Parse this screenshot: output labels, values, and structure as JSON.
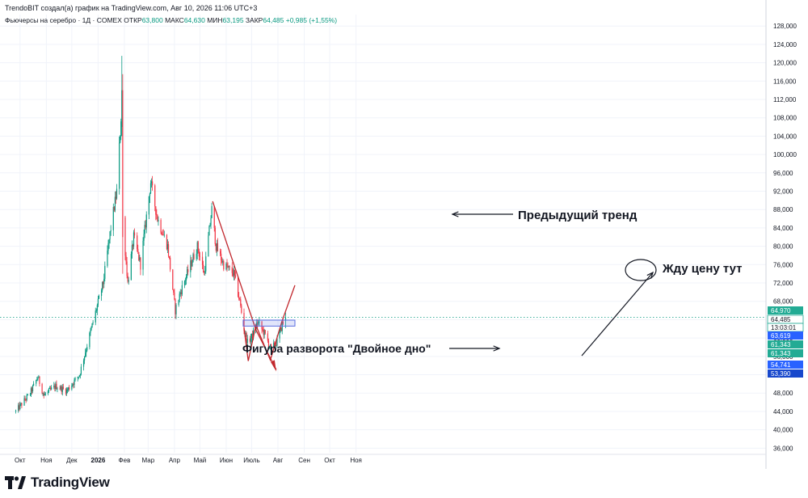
{
  "header": {
    "caption": "TrendoBIT создал(а) график на TradingView.com, Авг 10, 2026 11:06 UTC+3",
    "symbol": "Фьючерсы на серебро · 1Д · COMEX",
    "open_label": "ОТКР",
    "open_value": "63,800",
    "high_label": "МАКС",
    "high_value": "64,630",
    "low_label": "МИН",
    "low_value": "63,195",
    "close_label": "ЗАКР",
    "close_value": "64,485",
    "change": "+0,985 (+1,55%)"
  },
  "colors": {
    "up": "#089981",
    "down": "#f23645",
    "trend_line": "#c1272d",
    "arrow": "#131722",
    "range_box": "#5b6ee1",
    "badge_green": "#22ab94",
    "badge_blue": "#2962ff",
    "badge_darkblue": "#1848cc",
    "dotted": "#089981"
  },
  "chart_data": {
    "type": "candlestick",
    "title": "Фьючерсы на серебро · 1Д · COMEX",
    "y_ticks": [
      "36,000",
      "40,000",
      "44,000",
      "48,000",
      "52,000",
      "56,000",
      "60,000",
      "64,000",
      "68,000",
      "72,000",
      "76,000",
      "80,000",
      "84,000",
      "88,000",
      "92,000",
      "96,000",
      "100,000",
      "104,000",
      "108,000",
      "112,000",
      "116,000",
      "120,000",
      "124,000",
      "128,000"
    ],
    "ylim": [
      35000,
      130500
    ],
    "x_ticks": [
      "Окт",
      "Ноя",
      "Дек",
      "2026",
      "Фев",
      "Мар",
      "Апр",
      "Май",
      "Июн",
      "Июль",
      "Авг",
      "Сен",
      "Окт",
      "Ноя"
    ],
    "current_price": 64485,
    "price_labels": [
      {
        "text": "64,970",
        "color": "green"
      },
      {
        "text": "64,485",
        "color": "white"
      },
      {
        "text": "13:03:01",
        "color": "white"
      },
      {
        "text": "63,619",
        "color": "blue"
      },
      {
        "text": "61,343",
        "color": "green"
      },
      {
        "text": "61,343",
        "color": "green"
      },
      {
        "text": "54,741",
        "color": "blue"
      },
      {
        "text": "53,390",
        "color": "darkblue"
      }
    ],
    "keypoints": [
      [
        "2025-09-26",
        44000
      ],
      [
        "2025-10-13",
        48000
      ],
      [
        "2025-10-22",
        51500
      ],
      [
        "2025-10-29",
        47500
      ],
      [
        "2025-11-12",
        49500
      ],
      [
        "2025-11-25",
        48500
      ],
      [
        "2025-12-10",
        52000
      ],
      [
        "2025-12-24",
        62000
      ],
      [
        "2026-01-07",
        72000
      ],
      [
        "2026-01-16",
        84000
      ],
      [
        "2026-01-23",
        92000
      ],
      [
        "2026-01-28",
        108000
      ],
      [
        "2026-01-29",
        117000
      ],
      [
        "2026-01-30",
        86000
      ],
      [
        "2026-02-05",
        72000
      ],
      [
        "2026-02-12",
        82000
      ],
      [
        "2026-02-20",
        76000
      ],
      [
        "2026-03-04",
        94000
      ],
      [
        "2026-03-12",
        86000
      ],
      [
        "2026-03-24",
        80000
      ],
      [
        "2026-04-02",
        66000
      ],
      [
        "2026-04-08",
        70000
      ],
      [
        "2026-04-20",
        76000
      ],
      [
        "2026-04-28",
        80000
      ],
      [
        "2026-05-06",
        74000
      ],
      [
        "2026-05-15",
        88000
      ],
      [
        "2026-05-20",
        80000
      ],
      [
        "2026-05-29",
        76000
      ],
      [
        "2026-06-10",
        74000
      ],
      [
        "2026-06-17",
        68000
      ],
      [
        "2026-06-22",
        62000
      ],
      [
        "2026-06-26",
        59000
      ],
      [
        "2026-07-02",
        60500
      ],
      [
        "2026-07-08",
        63500
      ],
      [
        "2026-07-16",
        61000
      ],
      [
        "2026-07-24",
        57500
      ],
      [
        "2026-08-01",
        59500
      ],
      [
        "2026-08-06",
        63000
      ],
      [
        "2026-08-10",
        64485
      ]
    ]
  },
  "annotations": {
    "previous_trend": "Предыдущий тренд",
    "waiting_price": "Жду цену тут",
    "double_bottom": "Фигура разворота \"Двойное дно\""
  },
  "footer": {
    "logo_text": "TradingView"
  }
}
